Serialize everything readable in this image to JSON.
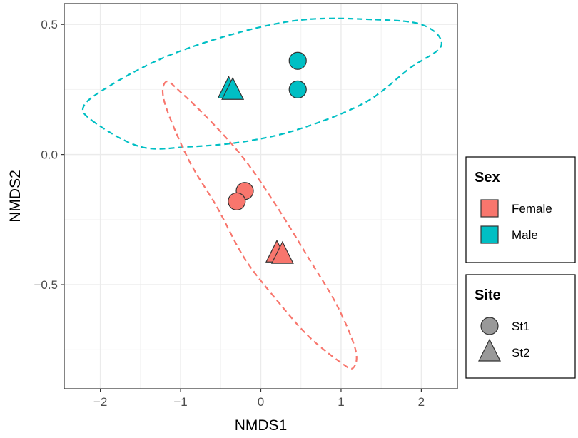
{
  "chart_data": {
    "type": "scatter",
    "xlabel": "NMDS1",
    "ylabel": "NMDS2",
    "xlim": [
      -2.45,
      2.45
    ],
    "ylim": [
      -0.9,
      0.58
    ],
    "x_ticks": [
      -2,
      -1,
      0,
      1,
      2
    ],
    "x_tick_labels": [
      "−2",
      "−1",
      "0",
      "1",
      "2"
    ],
    "y_ticks": [
      -0.5,
      0.0,
      0.5
    ],
    "y_tick_labels": [
      "−0.5",
      "0.0",
      "0.5"
    ],
    "grid": true,
    "legend_position": "right",
    "colors": {
      "Female": "#F8766D",
      "Male": "#00BFC4",
      "shape_legend": "#999999"
    },
    "legends": [
      {
        "title": "Sex",
        "entries": [
          {
            "label": "Female",
            "key": "Female"
          },
          {
            "label": "Male",
            "key": "Male"
          }
        ]
      },
      {
        "title": "Site",
        "entries": [
          {
            "label": "St1",
            "shape": "circle"
          },
          {
            "label": "St2",
            "shape": "triangle"
          }
        ]
      }
    ],
    "points": [
      {
        "x": 0.46,
        "y": 0.36,
        "sex": "Male",
        "site": "St1"
      },
      {
        "x": 0.46,
        "y": 0.25,
        "sex": "Male",
        "site": "St1"
      },
      {
        "x": -0.4,
        "y": 0.25,
        "sex": "Male",
        "site": "St2"
      },
      {
        "x": -0.35,
        "y": 0.245,
        "sex": "Male",
        "site": "St2"
      },
      {
        "x": -0.2,
        "y": -0.14,
        "sex": "Female",
        "site": "St1"
      },
      {
        "x": -0.3,
        "y": -0.18,
        "sex": "Female",
        "site": "St1"
      },
      {
        "x": 0.2,
        "y": -0.38,
        "sex": "Female",
        "site": "St2"
      },
      {
        "x": 0.27,
        "y": -0.385,
        "sex": "Female",
        "site": "St2"
      }
    ],
    "ellipses": [
      {
        "group": "Male",
        "path": [
          [
            -2.1,
            0.13
          ],
          [
            -1.5,
            0.03
          ],
          [
            -0.9,
            0.03
          ],
          [
            -0.2,
            0.05
          ],
          [
            0.5,
            0.1
          ],
          [
            1.3,
            0.2
          ],
          [
            1.85,
            0.33
          ],
          [
            2.25,
            0.42
          ],
          [
            2.0,
            0.5
          ],
          [
            1.3,
            0.52
          ],
          [
            0.6,
            0.52
          ],
          [
            0.0,
            0.49
          ],
          [
            -0.7,
            0.43
          ],
          [
            -1.3,
            0.36
          ],
          [
            -1.85,
            0.27
          ],
          [
            -2.2,
            0.19
          ]
        ]
      },
      {
        "group": "Female",
        "path": [
          [
            -1.18,
            0.28
          ],
          [
            -1.2,
            0.2
          ],
          [
            -0.9,
            -0.02
          ],
          [
            -0.55,
            -0.2
          ],
          [
            -0.2,
            -0.4
          ],
          [
            0.2,
            -0.56
          ],
          [
            0.6,
            -0.7
          ],
          [
            1.0,
            -0.8
          ],
          [
            1.15,
            -0.82
          ],
          [
            1.18,
            -0.75
          ],
          [
            0.95,
            -0.58
          ],
          [
            0.6,
            -0.4
          ],
          [
            0.2,
            -0.2
          ],
          [
            -0.2,
            -0.02
          ],
          [
            -0.6,
            0.12
          ],
          [
            -1.0,
            0.24
          ]
        ]
      }
    ]
  }
}
